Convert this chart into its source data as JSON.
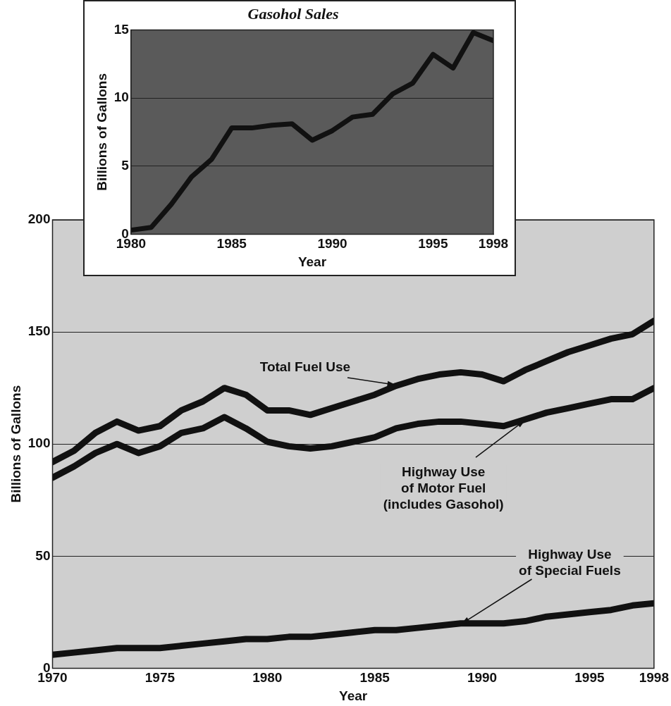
{
  "chart_data": [
    {
      "type": "line",
      "xlabel": "Year",
      "ylabel": "Billions of Gallons",
      "x": [
        1970,
        1971,
        1972,
        1973,
        1974,
        1975,
        1976,
        1977,
        1978,
        1979,
        1980,
        1981,
        1982,
        1983,
        1984,
        1985,
        1986,
        1987,
        1988,
        1989,
        1990,
        1991,
        1992,
        1993,
        1994,
        1995,
        1996,
        1997,
        1998
      ],
      "series": [
        {
          "name": "Total Fuel Use",
          "color": "#111111",
          "values": [
            92,
            97,
            105,
            110,
            106,
            108,
            115,
            119,
            125,
            122,
            115,
            115,
            113,
            116,
            119,
            122,
            126,
            129,
            131,
            132,
            131,
            128,
            133,
            137,
            141,
            144,
            147,
            149,
            155
          ]
        },
        {
          "name": "Highway Use\nof Motor Fuel\n(includes Gasohol)",
          "color": "#111111",
          "values": [
            85,
            90,
            96,
            100,
            96,
            99,
            105,
            107,
            112,
            107,
            101,
            99,
            98,
            99,
            101,
            103,
            107,
            109,
            110,
            110,
            109,
            108,
            111,
            114,
            116,
            118,
            120,
            120,
            125
          ]
        },
        {
          "name": "Highway Use\nof Special Fuels",
          "color": "#111111",
          "values": [
            6,
            7,
            8,
            9,
            9,
            9,
            10,
            11,
            12,
            13,
            13,
            14,
            14,
            15,
            16,
            17,
            17,
            18,
            19,
            20,
            20,
            20,
            21,
            23,
            24,
            25,
            26,
            28,
            29
          ]
        }
      ],
      "xlim": [
        1970,
        1998
      ],
      "xticks": [
        1970,
        1975,
        1980,
        1985,
        1990,
        1995,
        1998
      ],
      "ylim": [
        0,
        200
      ],
      "yticks": [
        0,
        50,
        100,
        150,
        200
      ],
      "grid": "y",
      "legend": false,
      "marker": "none",
      "line_style": "solid"
    },
    {
      "type": "line",
      "title": "Gasohol Sales",
      "xlabel": "Year",
      "ylabel": "Billions of Gallons",
      "x": [
        1980,
        1981,
        1982,
        1983,
        1984,
        1985,
        1986,
        1987,
        1988,
        1989,
        1990,
        1991,
        1992,
        1993,
        1994,
        1995,
        1996,
        1997,
        1998
      ],
      "series": [
        {
          "color": "#111111",
          "values": [
            0.3,
            0.5,
            2.2,
            4.2,
            5.5,
            7.8,
            7.8,
            8.0,
            8.1,
            6.9,
            7.6,
            8.6,
            8.8,
            10.3,
            11.1,
            13.2,
            12.2,
            14.8,
            14.2
          ]
        }
      ],
      "xlim": [
        1980,
        1998
      ],
      "xticks": [
        1980,
        1985,
        1990,
        1995,
        1998
      ],
      "ylim": [
        0,
        15
      ],
      "yticks": [
        0,
        5,
        10,
        15
      ],
      "grid": "y",
      "legend": false,
      "marker": "none",
      "line_style": "solid"
    }
  ]
}
